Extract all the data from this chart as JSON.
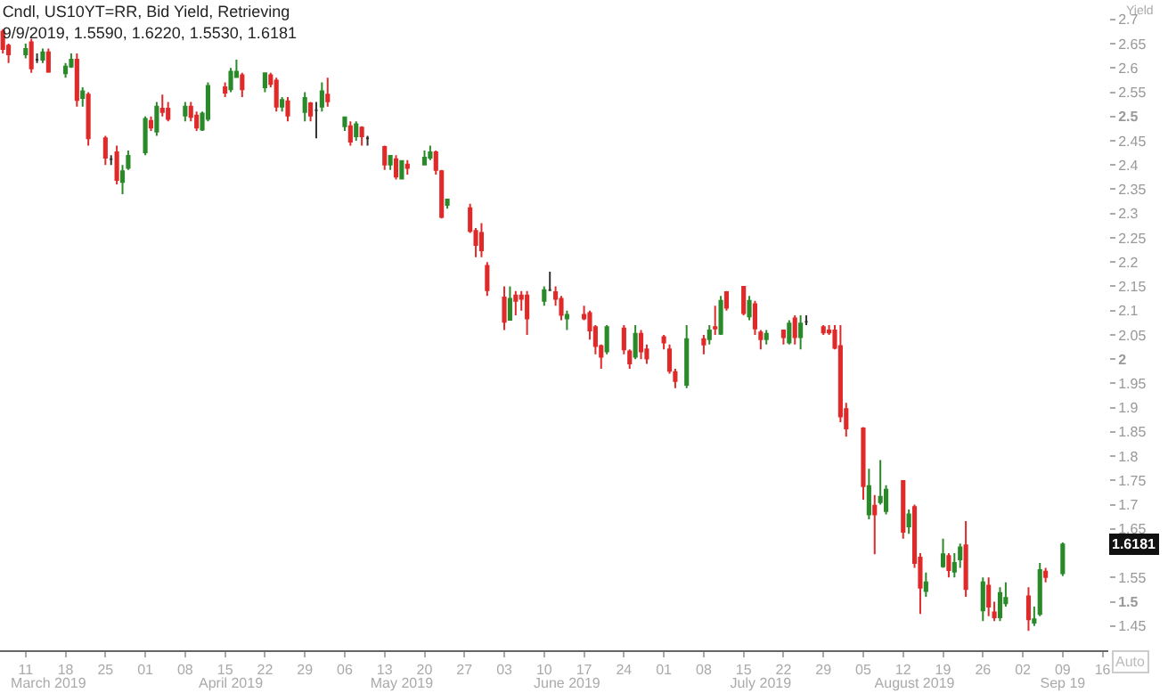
{
  "chart_data": {
    "type": "candlestick",
    "title": "Cndl, US10YT=RR, Bid Yield, Retrieving",
    "subtitle": "9/9/2019, 1.5590, 1.6220, 1.5530, 1.6181",
    "ylabel": "Yield",
    "x": [
      "2019-03-07",
      "2019-03-08",
      "2019-03-11",
      "2019-03-12",
      "2019-03-13",
      "2019-03-14",
      "2019-03-15",
      "2019-03-18",
      "2019-03-19",
      "2019-03-20",
      "2019-03-21",
      "2019-03-22",
      "2019-03-25",
      "2019-03-26",
      "2019-03-27",
      "2019-03-28",
      "2019-03-29",
      "2019-04-01",
      "2019-04-02",
      "2019-04-03",
      "2019-04-04",
      "2019-04-05",
      "2019-04-08",
      "2019-04-09",
      "2019-04-10",
      "2019-04-11",
      "2019-04-12",
      "2019-04-15",
      "2019-04-16",
      "2019-04-17",
      "2019-04-18",
      "2019-04-22",
      "2019-04-23",
      "2019-04-24",
      "2019-04-25",
      "2019-04-26",
      "2019-04-29",
      "2019-04-30",
      "2019-05-01",
      "2019-05-02",
      "2019-05-03",
      "2019-05-06",
      "2019-05-07",
      "2019-05-08",
      "2019-05-09",
      "2019-05-10",
      "2019-05-13",
      "2019-05-14",
      "2019-05-15",
      "2019-05-16",
      "2019-05-17",
      "2019-05-20",
      "2019-05-21",
      "2019-05-22",
      "2019-05-23",
      "2019-05-24",
      "2019-05-28",
      "2019-05-29",
      "2019-05-30",
      "2019-05-31",
      "2019-06-03",
      "2019-06-04",
      "2019-06-05",
      "2019-06-06",
      "2019-06-07",
      "2019-06-10",
      "2019-06-11",
      "2019-06-12",
      "2019-06-13",
      "2019-06-14",
      "2019-06-17",
      "2019-06-18",
      "2019-06-19",
      "2019-06-20",
      "2019-06-21",
      "2019-06-24",
      "2019-06-25",
      "2019-06-26",
      "2019-06-27",
      "2019-06-28",
      "2019-07-01",
      "2019-07-02",
      "2019-07-03",
      "2019-07-05",
      "2019-07-08",
      "2019-07-09",
      "2019-07-10",
      "2019-07-11",
      "2019-07-12",
      "2019-07-15",
      "2019-07-16",
      "2019-07-17",
      "2019-07-18",
      "2019-07-19",
      "2019-07-22",
      "2019-07-23",
      "2019-07-24",
      "2019-07-25",
      "2019-07-26",
      "2019-07-29",
      "2019-07-30",
      "2019-07-31",
      "2019-08-01",
      "2019-08-02",
      "2019-08-05",
      "2019-08-06",
      "2019-08-07",
      "2019-08-08",
      "2019-08-09",
      "2019-08-12",
      "2019-08-13",
      "2019-08-14",
      "2019-08-15",
      "2019-08-16",
      "2019-08-19",
      "2019-08-20",
      "2019-08-21",
      "2019-08-22",
      "2019-08-23",
      "2019-08-26",
      "2019-08-27",
      "2019-08-28",
      "2019-08-29",
      "2019-08-30",
      "2019-09-03",
      "2019-09-04",
      "2019-09-05",
      "2019-09-06",
      "2019-09-09"
    ],
    "ohlc": [
      [
        2.675,
        2.68,
        2.63,
        2.639
      ],
      [
        2.646,
        2.65,
        2.61,
        2.628
      ],
      [
        2.628,
        2.65,
        2.62,
        2.639
      ],
      [
        2.653,
        2.66,
        2.59,
        2.599
      ],
      [
        2.617,
        2.63,
        2.61,
        2.617
      ],
      [
        2.617,
        2.64,
        2.61,
        2.632
      ],
      [
        2.632,
        2.64,
        2.59,
        2.592
      ],
      [
        2.589,
        2.61,
        2.58,
        2.603
      ],
      [
        2.603,
        2.63,
        2.6,
        2.617
      ],
      [
        2.617,
        2.63,
        2.52,
        2.534
      ],
      [
        2.538,
        2.56,
        2.52,
        2.552
      ],
      [
        2.545,
        2.55,
        2.44,
        2.455
      ],
      [
        2.455,
        2.46,
        2.4,
        2.415
      ],
      [
        2.412,
        2.42,
        2.4,
        2.412
      ],
      [
        2.426,
        2.44,
        2.36,
        2.369
      ],
      [
        2.365,
        2.4,
        2.34,
        2.387
      ],
      [
        2.394,
        2.43,
        2.39,
        2.419
      ],
      [
        2.426,
        2.5,
        2.42,
        2.495
      ],
      [
        2.491,
        2.5,
        2.47,
        2.477
      ],
      [
        2.469,
        2.53,
        2.46,
        2.52
      ],
      [
        2.516,
        2.545,
        2.5,
        2.509
      ],
      [
        2.516,
        2.53,
        2.49,
        2.495
      ],
      [
        2.502,
        2.53,
        2.49,
        2.52
      ],
      [
        2.52,
        2.53,
        2.49,
        2.499
      ],
      [
        2.502,
        2.51,
        2.47,
        2.477
      ],
      [
        2.473,
        2.51,
        2.47,
        2.506
      ],
      [
        2.495,
        2.57,
        2.49,
        2.563
      ],
      [
        2.56,
        2.57,
        2.54,
        2.549
      ],
      [
        2.556,
        2.6,
        2.55,
        2.592
      ],
      [
        2.581,
        2.617,
        2.58,
        2.592
      ],
      [
        2.585,
        2.59,
        2.54,
        2.556
      ],
      [
        2.56,
        2.59,
        2.55,
        2.589
      ],
      [
        2.585,
        2.59,
        2.56,
        2.567
      ],
      [
        2.574,
        2.58,
        2.51,
        2.52
      ],
      [
        2.52,
        2.54,
        2.51,
        2.534
      ],
      [
        2.531,
        2.54,
        2.49,
        2.502
      ],
      [
        2.509,
        2.55,
        2.49,
        2.538
      ],
      [
        2.527,
        2.53,
        2.49,
        2.502
      ],
      [
        2.513,
        2.53,
        2.455,
        2.513
      ],
      [
        2.52,
        2.57,
        2.51,
        2.552
      ],
      [
        2.545,
        2.58,
        2.52,
        2.531
      ],
      [
        2.48,
        2.5,
        2.47,
        2.498
      ],
      [
        2.48,
        2.49,
        2.44,
        2.448
      ],
      [
        2.459,
        2.49,
        2.45,
        2.484
      ],
      [
        2.477,
        2.48,
        2.44,
        2.459
      ],
      [
        2.455,
        2.46,
        2.44,
        2.455
      ],
      [
        2.437,
        2.44,
        2.39,
        2.401
      ],
      [
        2.401,
        2.42,
        2.39,
        2.419
      ],
      [
        2.412,
        2.42,
        2.37,
        2.376
      ],
      [
        2.372,
        2.41,
        2.37,
        2.408
      ],
      [
        2.401,
        2.41,
        2.38,
        2.394
      ],
      [
        2.401,
        2.43,
        2.4,
        2.415
      ],
      [
        2.415,
        2.44,
        2.41,
        2.426
      ],
      [
        2.426,
        2.43,
        2.38,
        2.39
      ],
      [
        2.387,
        2.39,
        2.29,
        2.293
      ],
      [
        2.318,
        2.33,
        2.31,
        2.329
      ],
      [
        2.311,
        2.32,
        2.26,
        2.264
      ],
      [
        2.264,
        2.27,
        2.21,
        2.235
      ],
      [
        2.26,
        2.28,
        2.21,
        2.224
      ],
      [
        2.192,
        2.2,
        2.13,
        2.142
      ],
      [
        2.127,
        2.15,
        2.06,
        2.077
      ],
      [
        2.081,
        2.15,
        2.08,
        2.124
      ],
      [
        2.131,
        2.14,
        2.09,
        2.12
      ],
      [
        2.131,
        2.14,
        2.1,
        2.124
      ],
      [
        2.131,
        2.14,
        2.05,
        2.084
      ],
      [
        2.12,
        2.15,
        2.11,
        2.142
      ],
      [
        2.142,
        2.18,
        2.14,
        2.142
      ],
      [
        2.138,
        2.15,
        2.11,
        2.124
      ],
      [
        2.124,
        2.13,
        2.08,
        2.091
      ],
      [
        2.084,
        2.1,
        2.06,
        2.091
      ],
      [
        2.091,
        2.11,
        2.08,
        2.084
      ],
      [
        2.095,
        2.1,
        2.04,
        2.059
      ],
      [
        2.066,
        2.07,
        2.01,
        2.027
      ],
      [
        2.027,
        2.03,
        1.98,
        2.005
      ],
      [
        2.016,
        2.07,
        2.01,
        2.066
      ],
      [
        2.063,
        2.07,
        2.01,
        2.02
      ],
      [
        2.016,
        2.02,
        1.98,
        1.991
      ],
      [
        2.005,
        2.07,
        2.0,
        2.052
      ],
      [
        2.052,
        2.06,
        2.0,
        2.016
      ],
      [
        2.02,
        2.03,
        1.99,
        2.001
      ],
      [
        2.045,
        2.05,
        2.02,
        2.034
      ],
      [
        2.02,
        2.03,
        1.97,
        1.976
      ],
      [
        1.973,
        1.98,
        1.94,
        1.955
      ],
      [
        1.947,
        2.07,
        1.94,
        2.041
      ],
      [
        2.041,
        2.05,
        2.01,
        2.03
      ],
      [
        2.041,
        2.07,
        2.03,
        2.059
      ],
      [
        2.066,
        2.11,
        2.05,
        2.063
      ],
      [
        2.052,
        2.13,
        2.05,
        2.12
      ],
      [
        2.138,
        2.14,
        2.1,
        2.106
      ],
      [
        2.149,
        2.15,
        2.09,
        2.095
      ],
      [
        2.088,
        2.13,
        2.08,
        2.12
      ],
      [
        2.113,
        2.12,
        2.05,
        2.063
      ],
      [
        2.055,
        2.06,
        2.02,
        2.041
      ],
      [
        2.041,
        2.06,
        2.03,
        2.052
      ],
      [
        2.059,
        2.06,
        2.03,
        2.045
      ],
      [
        2.034,
        2.08,
        2.03,
        2.073
      ],
      [
        2.084,
        2.09,
        2.03,
        2.045
      ],
      [
        2.045,
        2.09,
        2.02,
        2.073
      ],
      [
        2.077,
        2.09,
        2.07,
        2.077
      ],
      [
        2.066,
        2.07,
        2.05,
        2.055
      ],
      [
        2.059,
        2.07,
        2.05,
        2.055
      ],
      [
        2.059,
        2.07,
        2.02,
        2.023
      ],
      [
        2.027,
        2.07,
        1.87,
        1.882
      ],
      [
        1.897,
        1.91,
        1.84,
        1.857
      ],
      [
        1.857,
        1.86,
        1.71,
        1.738
      ],
      [
        1.68,
        1.774,
        1.67,
        1.738
      ],
      [
        1.698,
        1.72,
        1.598,
        1.68
      ],
      [
        1.705,
        1.792,
        1.7,
        1.716
      ],
      [
        1.687,
        1.74,
        1.68,
        1.731
      ],
      [
        1.749,
        1.75,
        1.63,
        1.644
      ],
      [
        1.655,
        1.69,
        1.64,
        1.68
      ],
      [
        1.695,
        1.7,
        1.57,
        1.58
      ],
      [
        1.591,
        1.6,
        1.475,
        1.529
      ],
      [
        1.522,
        1.56,
        1.51,
        1.54
      ],
      [
        1.573,
        1.63,
        1.57,
        1.598
      ],
      [
        1.594,
        1.6,
        1.55,
        1.565
      ],
      [
        1.562,
        1.6,
        1.55,
        1.58
      ],
      [
        1.587,
        1.62,
        1.57,
        1.612
      ],
      [
        1.616,
        1.666,
        1.51,
        1.526
      ],
      [
        1.482,
        1.55,
        1.46,
        1.54
      ],
      [
        1.533,
        1.55,
        1.47,
        1.49
      ],
      [
        1.478,
        1.5,
        1.46,
        1.468
      ],
      [
        1.468,
        1.53,
        1.46,
        1.518
      ],
      [
        1.497,
        1.54,
        1.49,
        1.508
      ],
      [
        1.511,
        1.53,
        1.44,
        1.464
      ],
      [
        1.457,
        1.49,
        1.45,
        1.464
      ],
      [
        1.475,
        1.58,
        1.47,
        1.565
      ],
      [
        1.562,
        1.57,
        1.54,
        1.551
      ],
      [
        1.559,
        1.622,
        1.553,
        1.6181
      ]
    ],
    "colors": [
      "#e02a2a",
      "#e02a2a",
      "#2a8a2a",
      "#e02a2a",
      "#333333",
      "#2a8a2a",
      "#e02a2a",
      "#2a8a2a",
      "#2a8a2a",
      "#e02a2a",
      "#2a8a2a",
      "#e02a2a",
      "#e02a2a",
      "#333333",
      "#e02a2a",
      "#2a8a2a",
      "#2a8a2a",
      "#2a8a2a",
      "#e02a2a",
      "#2a8a2a",
      "#e02a2a",
      "#e02a2a",
      "#2a8a2a",
      "#e02a2a",
      "#e02a2a",
      "#2a8a2a",
      "#2a8a2a",
      "#e02a2a",
      "#2a8a2a",
      "#2a8a2a",
      "#e02a2a",
      "#2a8a2a",
      "#e02a2a",
      "#e02a2a",
      "#2a8a2a",
      "#e02a2a",
      "#2a8a2a",
      "#e02a2a",
      "#333333",
      "#2a8a2a",
      "#e02a2a",
      "#2a8a2a",
      "#e02a2a",
      "#2a8a2a",
      "#e02a2a",
      "#333333",
      "#e02a2a",
      "#2a8a2a",
      "#e02a2a",
      "#2a8a2a",
      "#e02a2a",
      "#2a8a2a",
      "#2a8a2a",
      "#e02a2a",
      "#e02a2a",
      "#2a8a2a",
      "#e02a2a",
      "#e02a2a",
      "#e02a2a",
      "#e02a2a",
      "#e02a2a",
      "#2a8a2a",
      "#e02a2a",
      "#e02a2a",
      "#e02a2a",
      "#2a8a2a",
      "#333333",
      "#e02a2a",
      "#e02a2a",
      "#2a8a2a",
      "#e02a2a",
      "#e02a2a",
      "#e02a2a",
      "#e02a2a",
      "#2a8a2a",
      "#e02a2a",
      "#e02a2a",
      "#2a8a2a",
      "#e02a2a",
      "#e02a2a",
      "#e02a2a",
      "#e02a2a",
      "#e02a2a",
      "#2a8a2a",
      "#e02a2a",
      "#2a8a2a",
      "#e02a2a",
      "#2a8a2a",
      "#e02a2a",
      "#e02a2a",
      "#2a8a2a",
      "#e02a2a",
      "#e02a2a",
      "#2a8a2a",
      "#e02a2a",
      "#2a8a2a",
      "#e02a2a",
      "#2a8a2a",
      "#333333",
      "#e02a2a",
      "#e02a2a",
      "#e02a2a",
      "#e02a2a",
      "#e02a2a",
      "#e02a2a",
      "#2a8a2a",
      "#e02a2a",
      "#2a8a2a",
      "#2a8a2a",
      "#e02a2a",
      "#2a8a2a",
      "#e02a2a",
      "#e02a2a",
      "#2a8a2a",
      "#2a8a2a",
      "#e02a2a",
      "#2a8a2a",
      "#2a8a2a",
      "#e02a2a",
      "#2a8a2a",
      "#e02a2a",
      "#e02a2a",
      "#2a8a2a",
      "#2a8a2a",
      "#e02a2a",
      "#2a8a2a",
      "#2a8a2a",
      "#e02a2a",
      "#2a8a2a"
    ],
    "xlim": [
      "2019-03-06T12:00",
      "2019-09-17"
    ],
    "xticks": [
      {
        "value": "2019-03-11",
        "label": "11"
      },
      {
        "value": "2019-03-18",
        "label": "18"
      },
      {
        "value": "2019-03-25",
        "label": "25"
      },
      {
        "value": "2019-04-01",
        "label": "01"
      },
      {
        "value": "2019-04-08",
        "label": "08"
      },
      {
        "value": "2019-04-15",
        "label": "15"
      },
      {
        "value": "2019-04-22",
        "label": "22"
      },
      {
        "value": "2019-04-29",
        "label": "29"
      },
      {
        "value": "2019-05-06",
        "label": "06"
      },
      {
        "value": "2019-05-13",
        "label": "13"
      },
      {
        "value": "2019-05-20",
        "label": "20"
      },
      {
        "value": "2019-05-27",
        "label": "27"
      },
      {
        "value": "2019-06-03",
        "label": "03"
      },
      {
        "value": "2019-06-10",
        "label": "10"
      },
      {
        "value": "2019-06-17",
        "label": "17"
      },
      {
        "value": "2019-06-24",
        "label": "24"
      },
      {
        "value": "2019-07-01",
        "label": "01"
      },
      {
        "value": "2019-07-08",
        "label": "08"
      },
      {
        "value": "2019-07-15",
        "label": "15"
      },
      {
        "value": "2019-07-22",
        "label": "22"
      },
      {
        "value": "2019-07-29",
        "label": "29"
      },
      {
        "value": "2019-08-05",
        "label": "05"
      },
      {
        "value": "2019-08-12",
        "label": "12"
      },
      {
        "value": "2019-08-19",
        "label": "19"
      },
      {
        "value": "2019-08-26",
        "label": "26"
      },
      {
        "value": "2019-09-02",
        "label": "02"
      },
      {
        "value": "2019-09-09",
        "label": "09"
      },
      {
        "value": "2019-09-16",
        "label": "16"
      }
    ],
    "x2lim": [
      "2019-03-06T12:00",
      "2019-09-17"
    ],
    "x2ticks": [
      {
        "value": "2019-03-15",
        "label": "March 2019"
      },
      {
        "value": "2019-04-16",
        "label": "April 2019"
      },
      {
        "value": "2019-05-16",
        "label": "May 2019"
      },
      {
        "value": "2019-06-14",
        "label": "June 2019"
      },
      {
        "value": "2019-07-18",
        "label": "July 2019"
      },
      {
        "value": "2019-08-14",
        "label": "August 2019"
      },
      {
        "value": "2019-09-09",
        "label": "Sep 19"
      }
    ],
    "ylim": [
      1.4,
      2.74
    ],
    "yticks": [
      1.45,
      1.5,
      1.55,
      {
        "value": 1.6,
        "label": null
      },
      1.65,
      1.7,
      1.75,
      1.8,
      1.85,
      1.9,
      1.95,
      2,
      2.05,
      2.1,
      2.15,
      2.2,
      2.25,
      2.3,
      2.35,
      2.4,
      2.45,
      2.5,
      2.55,
      2.6,
      2.65,
      2.7
    ],
    "annotations": [
      {
        "text": "1.6181",
        "y": 1.6181
      },
      "Auto"
    ]
  }
}
